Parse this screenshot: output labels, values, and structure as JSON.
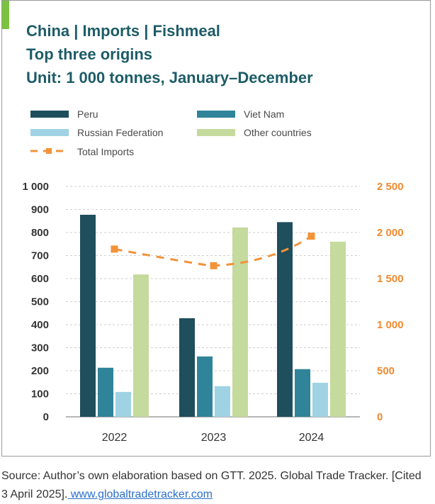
{
  "colors": {
    "accent": "#7cc242",
    "title": "#1d5c66",
    "peru": "#1f4e5c",
    "viet_nam": "#2f8499",
    "russian_federation": "#9fd3e3",
    "other_countries": "#c5da9d",
    "total_imports": "#f2933a",
    "right_axis": "#ef8a2f",
    "grid": "#cfcfcf"
  },
  "titles": {
    "line1": "China | Imports | Fishmeal",
    "line2": "Top three origins",
    "line3": "Unit: 1 000 tonnes, January–December"
  },
  "chart_data": {
    "type": "bar",
    "categories": [
      "2022",
      "2023",
      "2024"
    ],
    "series": [
      {
        "name": "Peru",
        "values": [
          877,
          428,
          845
        ]
      },
      {
        "name": "Viet Nam",
        "values": [
          213,
          262,
          207
        ]
      },
      {
        "name": "Russian Federation",
        "values": [
          108,
          133,
          148
        ]
      },
      {
        "name": "Other countries",
        "values": [
          618,
          822,
          760
        ]
      }
    ],
    "line_series": {
      "name": "Total Imports",
      "axis": "right",
      "style": "dashed",
      "values": [
        1820,
        1640,
        1960
      ]
    },
    "ylim": [
      0,
      1000
    ],
    "yticks": [
      "0",
      "100",
      "200",
      "300",
      "400",
      "500",
      "600",
      "700",
      "800",
      "900",
      "1 000"
    ],
    "y2lim": [
      0,
      2500
    ],
    "y2ticks": [
      "0",
      "500",
      "1 000",
      "1 500",
      "2 000",
      "2 500"
    ],
    "legend_position": "top",
    "grid": "horizontal dashed"
  },
  "caption": {
    "text": "Source: Author’s own elaboration based on GTT. 2025. Global Trade Tracker. [Cited 3 April 2025].",
    "link": " www.globaltradetracker.com"
  }
}
